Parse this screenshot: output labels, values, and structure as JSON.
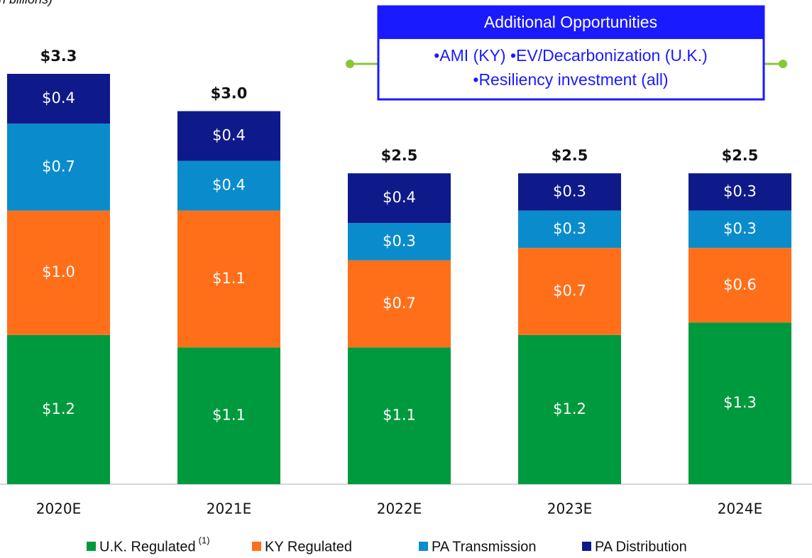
{
  "chart_data": {
    "type": "stacked_bar",
    "subtitle": "(in billions)",
    "categories": [
      "2020E",
      "2021E",
      "2022E",
      "2023E",
      "2024E"
    ],
    "series": [
      {
        "name": "U.K. Regulated",
        "color": "#009a3e",
        "values": [
          1.2,
          1.1,
          1.1,
          1.2,
          1.3
        ],
        "value_labels": [
          "$1.2",
          "$1.1",
          "$1.1",
          "$1.2",
          "$1.3"
        ]
      },
      {
        "name": "KY Regulated",
        "color": "#ff6f1a",
        "values": [
          1.0,
          1.1,
          0.7,
          0.7,
          0.6
        ],
        "value_labels": [
          "$1.0",
          "$1.1",
          "$0.7",
          "$0.7",
          "$0.6"
        ]
      },
      {
        "name": "PA Transmission",
        "color": "#0a8ccc",
        "values": [
          0.7,
          0.4,
          0.3,
          0.3,
          0.3
        ],
        "value_labels": [
          "$0.7",
          "$0.4",
          "$0.3",
          "$0.3",
          "$0.3"
        ]
      },
      {
        "name": "PA Distribution",
        "color": "#0f1a8a",
        "values": [
          0.4,
          0.4,
          0.4,
          0.3,
          0.3
        ],
        "value_labels": [
          "$0.4",
          "$0.4",
          "$0.4",
          "$0.3",
          "$0.3"
        ]
      }
    ],
    "totals": [
      3.3,
      3.0,
      2.5,
      2.5,
      2.5
    ],
    "total_labels": [
      "$3.3",
      "$3.0",
      "$2.5",
      "$2.5",
      "$2.5"
    ],
    "legend_note": "(1)",
    "ylim": [
      0,
      3.3
    ],
    "annotation": {
      "title": "Additional Opportunities",
      "lines": [
        "•AMI (KY) •EV/Decarbonization (U.K.)",
        "•Resiliency investment (all)"
      ]
    }
  }
}
